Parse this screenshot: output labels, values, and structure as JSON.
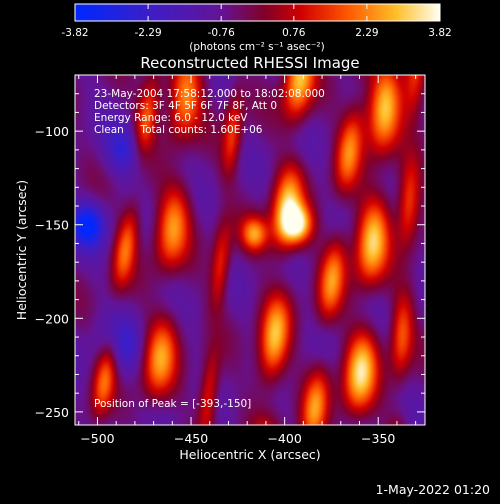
{
  "chart_data": {
    "type": "heatmap",
    "title": "Reconstructed RHESSI Image",
    "xlabel": "Heliocentric X (arcsec)",
    "ylabel": "Heliocentric Y (arcsec)",
    "xlim": [
      -512,
      -325
    ],
    "ylim": [
      -257,
      -70
    ],
    "xticks": [
      -500,
      -450,
      -400,
      -350
    ],
    "yticks": [
      -100,
      -150,
      -200,
      -250
    ],
    "colorbar": {
      "range": [
        -3.82,
        3.82
      ],
      "ticks": [
        -3.82,
        -2.29,
        -0.76,
        0.76,
        2.29,
        3.82
      ],
      "tick_labels": [
        "-3.82",
        "-2.29",
        "-0.76",
        "0.76",
        "2.29",
        "3.82"
      ],
      "unit_label": "(photons cm⁻² s⁻¹ asec⁻²)",
      "colormap": "blue-purple-red-yellow-white"
    },
    "annotations": [
      "23-May-2004 17:58:12.000 to 18:02:08.000",
      "Detectors: 3F 4F 5F 6F 7F 8F, Att 0",
      "Energy Range: 6.0 - 12.0 keV",
      "Clean     Total counts: 1.60E+06"
    ],
    "peak_label": "Position of Peak = [-393,-150]",
    "peak": [
      -393,
      -150
    ],
    "ridges": [
      {
        "x_at_top": -470,
        "x_at_bottom": -500,
        "intensity": 2.6,
        "width": 6
      },
      {
        "x_at_top": -452,
        "x_at_bottom": -470,
        "intensity": 3.0,
        "width": 9
      },
      {
        "x_at_top": -425,
        "x_at_bottom": -442,
        "intensity": 2.2,
        "width": 5
      },
      {
        "x_at_top": -392,
        "x_at_bottom": -410,
        "intensity": 3.6,
        "width": 8
      },
      {
        "x_at_top": -360,
        "x_at_bottom": -385,
        "intensity": 2.8,
        "width": 7
      },
      {
        "x_at_top": -345,
        "x_at_bottom": -362,
        "intensity": 3.8,
        "width": 9
      },
      {
        "x_at_top": -330,
        "x_at_bottom": -340,
        "intensity": 2.5,
        "width": 6
      }
    ],
    "blobs": [
      {
        "x": -416,
        "y": -155,
        "intensity": 3.0,
        "radius": 7
      },
      {
        "x": -393,
        "y": -150,
        "intensity": 3.8,
        "radius": 8
      },
      {
        "x": -505,
        "y": -150,
        "intensity": -3.0,
        "radius": 9
      },
      {
        "x": -485,
        "y": -110,
        "intensity": -1.8,
        "radius": 10
      },
      {
        "x": -488,
        "y": -215,
        "intensity": -1.5,
        "radius": 12
      }
    ]
  },
  "footer": {
    "timestamp": "1-May-2022 01:20"
  }
}
